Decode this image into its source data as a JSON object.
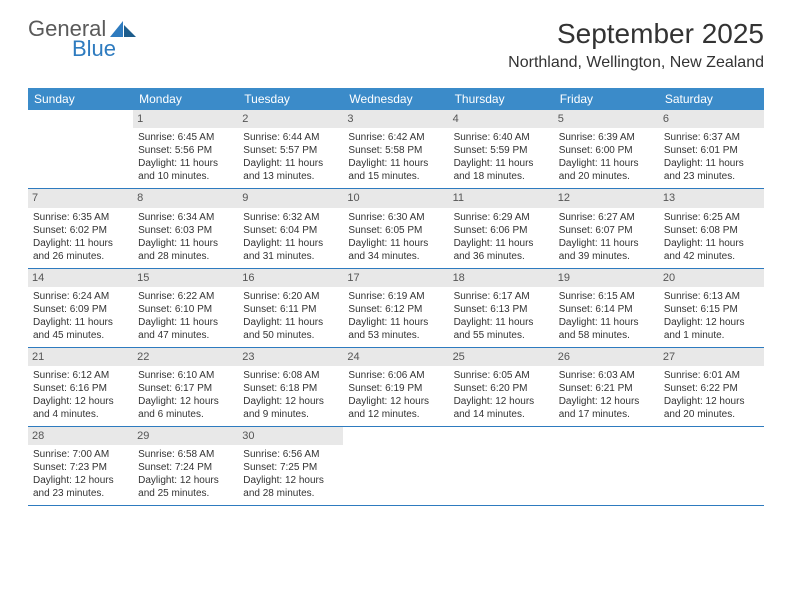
{
  "logo": {
    "text1": "General",
    "text2": "Blue"
  },
  "header": {
    "title": "September 2025",
    "location": "Northland, Wellington, New Zealand"
  },
  "colors": {
    "header_bg": "#3b8bc9",
    "header_text": "#ffffff",
    "daynum_bg": "#e8e8e8",
    "border": "#2e7bbf",
    "logo_gray": "#5a5a5a",
    "logo_blue": "#2e7bbf"
  },
  "weekdays": [
    "Sunday",
    "Monday",
    "Tuesday",
    "Wednesday",
    "Thursday",
    "Friday",
    "Saturday"
  ],
  "weeks": [
    [
      null,
      {
        "n": "1",
        "sr": "Sunrise: 6:45 AM",
        "ss": "Sunset: 5:56 PM",
        "d1": "Daylight: 11 hours",
        "d2": "and 10 minutes."
      },
      {
        "n": "2",
        "sr": "Sunrise: 6:44 AM",
        "ss": "Sunset: 5:57 PM",
        "d1": "Daylight: 11 hours",
        "d2": "and 13 minutes."
      },
      {
        "n": "3",
        "sr": "Sunrise: 6:42 AM",
        "ss": "Sunset: 5:58 PM",
        "d1": "Daylight: 11 hours",
        "d2": "and 15 minutes."
      },
      {
        "n": "4",
        "sr": "Sunrise: 6:40 AM",
        "ss": "Sunset: 5:59 PM",
        "d1": "Daylight: 11 hours",
        "d2": "and 18 minutes."
      },
      {
        "n": "5",
        "sr": "Sunrise: 6:39 AM",
        "ss": "Sunset: 6:00 PM",
        "d1": "Daylight: 11 hours",
        "d2": "and 20 minutes."
      },
      {
        "n": "6",
        "sr": "Sunrise: 6:37 AM",
        "ss": "Sunset: 6:01 PM",
        "d1": "Daylight: 11 hours",
        "d2": "and 23 minutes."
      }
    ],
    [
      {
        "n": "7",
        "sr": "Sunrise: 6:35 AM",
        "ss": "Sunset: 6:02 PM",
        "d1": "Daylight: 11 hours",
        "d2": "and 26 minutes."
      },
      {
        "n": "8",
        "sr": "Sunrise: 6:34 AM",
        "ss": "Sunset: 6:03 PM",
        "d1": "Daylight: 11 hours",
        "d2": "and 28 minutes."
      },
      {
        "n": "9",
        "sr": "Sunrise: 6:32 AM",
        "ss": "Sunset: 6:04 PM",
        "d1": "Daylight: 11 hours",
        "d2": "and 31 minutes."
      },
      {
        "n": "10",
        "sr": "Sunrise: 6:30 AM",
        "ss": "Sunset: 6:05 PM",
        "d1": "Daylight: 11 hours",
        "d2": "and 34 minutes."
      },
      {
        "n": "11",
        "sr": "Sunrise: 6:29 AM",
        "ss": "Sunset: 6:06 PM",
        "d1": "Daylight: 11 hours",
        "d2": "and 36 minutes."
      },
      {
        "n": "12",
        "sr": "Sunrise: 6:27 AM",
        "ss": "Sunset: 6:07 PM",
        "d1": "Daylight: 11 hours",
        "d2": "and 39 minutes."
      },
      {
        "n": "13",
        "sr": "Sunrise: 6:25 AM",
        "ss": "Sunset: 6:08 PM",
        "d1": "Daylight: 11 hours",
        "d2": "and 42 minutes."
      }
    ],
    [
      {
        "n": "14",
        "sr": "Sunrise: 6:24 AM",
        "ss": "Sunset: 6:09 PM",
        "d1": "Daylight: 11 hours",
        "d2": "and 45 minutes."
      },
      {
        "n": "15",
        "sr": "Sunrise: 6:22 AM",
        "ss": "Sunset: 6:10 PM",
        "d1": "Daylight: 11 hours",
        "d2": "and 47 minutes."
      },
      {
        "n": "16",
        "sr": "Sunrise: 6:20 AM",
        "ss": "Sunset: 6:11 PM",
        "d1": "Daylight: 11 hours",
        "d2": "and 50 minutes."
      },
      {
        "n": "17",
        "sr": "Sunrise: 6:19 AM",
        "ss": "Sunset: 6:12 PM",
        "d1": "Daylight: 11 hours",
        "d2": "and 53 minutes."
      },
      {
        "n": "18",
        "sr": "Sunrise: 6:17 AM",
        "ss": "Sunset: 6:13 PM",
        "d1": "Daylight: 11 hours",
        "d2": "and 55 minutes."
      },
      {
        "n": "19",
        "sr": "Sunrise: 6:15 AM",
        "ss": "Sunset: 6:14 PM",
        "d1": "Daylight: 11 hours",
        "d2": "and 58 minutes."
      },
      {
        "n": "20",
        "sr": "Sunrise: 6:13 AM",
        "ss": "Sunset: 6:15 PM",
        "d1": "Daylight: 12 hours",
        "d2": "and 1 minute."
      }
    ],
    [
      {
        "n": "21",
        "sr": "Sunrise: 6:12 AM",
        "ss": "Sunset: 6:16 PM",
        "d1": "Daylight: 12 hours",
        "d2": "and 4 minutes."
      },
      {
        "n": "22",
        "sr": "Sunrise: 6:10 AM",
        "ss": "Sunset: 6:17 PM",
        "d1": "Daylight: 12 hours",
        "d2": "and 6 minutes."
      },
      {
        "n": "23",
        "sr": "Sunrise: 6:08 AM",
        "ss": "Sunset: 6:18 PM",
        "d1": "Daylight: 12 hours",
        "d2": "and 9 minutes."
      },
      {
        "n": "24",
        "sr": "Sunrise: 6:06 AM",
        "ss": "Sunset: 6:19 PM",
        "d1": "Daylight: 12 hours",
        "d2": "and 12 minutes."
      },
      {
        "n": "25",
        "sr": "Sunrise: 6:05 AM",
        "ss": "Sunset: 6:20 PM",
        "d1": "Daylight: 12 hours",
        "d2": "and 14 minutes."
      },
      {
        "n": "26",
        "sr": "Sunrise: 6:03 AM",
        "ss": "Sunset: 6:21 PM",
        "d1": "Daylight: 12 hours",
        "d2": "and 17 minutes."
      },
      {
        "n": "27",
        "sr": "Sunrise: 6:01 AM",
        "ss": "Sunset: 6:22 PM",
        "d1": "Daylight: 12 hours",
        "d2": "and 20 minutes."
      }
    ],
    [
      {
        "n": "28",
        "sr": "Sunrise: 7:00 AM",
        "ss": "Sunset: 7:23 PM",
        "d1": "Daylight: 12 hours",
        "d2": "and 23 minutes."
      },
      {
        "n": "29",
        "sr": "Sunrise: 6:58 AM",
        "ss": "Sunset: 7:24 PM",
        "d1": "Daylight: 12 hours",
        "d2": "and 25 minutes."
      },
      {
        "n": "30",
        "sr": "Sunrise: 6:56 AM",
        "ss": "Sunset: 7:25 PM",
        "d1": "Daylight: 12 hours",
        "d2": "and 28 minutes."
      },
      null,
      null,
      null,
      null
    ]
  ]
}
